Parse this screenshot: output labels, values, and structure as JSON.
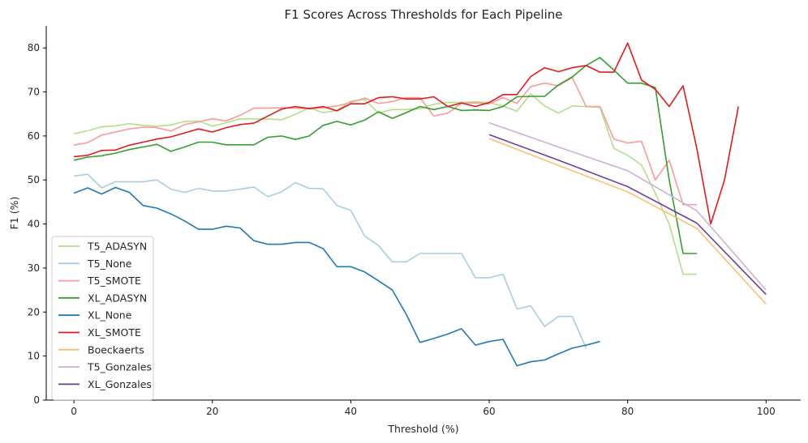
{
  "chart_data": {
    "type": "line",
    "title": "F1 Scores Across Thresholds for Each Pipeline",
    "xlabel": "Threshold (%)",
    "ylabel": "F1 (%)",
    "xlim": [
      -4,
      105
    ],
    "ylim": [
      0,
      85
    ],
    "xticks": [
      "0",
      "20",
      "40",
      "60",
      "80",
      "100"
    ],
    "yticks": [
      "0",
      "10",
      "20",
      "30",
      "40",
      "50",
      "60",
      "70",
      "80"
    ],
    "grid": false,
    "legend_position": "lower-left",
    "series": [
      {
        "name": "T5_ADASYN",
        "color": "#b2df8a",
        "x": [
          0,
          2,
          4,
          6,
          8,
          10,
          12,
          14,
          16,
          18,
          20,
          22,
          24,
          26,
          28,
          30,
          32,
          34,
          36,
          38,
          40,
          42,
          44,
          46,
          48,
          50,
          52,
          54,
          56,
          58,
          60,
          62,
          64,
          66,
          68,
          70,
          72,
          74,
          76,
          78,
          80,
          82,
          84,
          86,
          88,
          90
        ],
        "y": [
          60.5,
          61.2,
          62.1,
          62.3,
          62.8,
          62.4,
          62.2,
          62.5,
          63.3,
          63.4,
          62.2,
          63.0,
          63.9,
          63.9,
          63.8,
          63.7,
          64.9,
          66.4,
          65.3,
          65.8,
          67.9,
          68.3,
          65.2,
          66.0,
          66.0,
          66.2,
          67.2,
          67.6,
          67.6,
          67.8,
          67.6,
          66.8,
          65.6,
          69.6,
          66.8,
          65.2,
          66.8,
          66.7,
          66.5,
          57.2,
          55.6,
          53.4,
          47.0,
          40.0,
          28.6,
          28.6
        ]
      },
      {
        "name": "T5_None",
        "color": "#a6cee3",
        "x": [
          0,
          2,
          4,
          6,
          8,
          10,
          12,
          14,
          16,
          18,
          20,
          22,
          24,
          26,
          28,
          30,
          32,
          34,
          36,
          38,
          40,
          42,
          44,
          46,
          48,
          50,
          52,
          54,
          56,
          58,
          60,
          62,
          64,
          66,
          68,
          70,
          72,
          74
        ],
        "y": [
          50.9,
          51.3,
          48.2,
          49.6,
          49.6,
          49.6,
          50.0,
          47.9,
          47.2,
          48.1,
          47.5,
          47.5,
          47.9,
          48.4,
          46.2,
          47.3,
          49.4,
          48.1,
          48.0,
          44.2,
          43.1,
          37.3,
          35.1,
          31.4,
          31.4,
          33.3,
          33.3,
          33.3,
          33.3,
          27.8,
          27.8,
          28.6,
          20.7,
          21.4,
          16.7,
          19.0,
          19.0,
          11.8
        ]
      },
      {
        "name": "T5_SMOTE",
        "color": "#fb9a99",
        "x": [
          0,
          2,
          4,
          6,
          8,
          10,
          12,
          14,
          16,
          18,
          20,
          22,
          24,
          26,
          28,
          30,
          32,
          34,
          36,
          38,
          40,
          42,
          44,
          46,
          48,
          50,
          52,
          54,
          56,
          58,
          60,
          62,
          64,
          66,
          68,
          70,
          72,
          74,
          76,
          78,
          80,
          82,
          84,
          86,
          88,
          90
        ],
        "y": [
          57.9,
          58.5,
          60.2,
          60.9,
          61.6,
          62.0,
          61.9,
          61.1,
          62.6,
          63.2,
          63.9,
          63.4,
          64.7,
          66.3,
          66.3,
          66.4,
          66.3,
          66.2,
          66.4,
          66.8,
          67.6,
          68.6,
          67.4,
          67.8,
          68.7,
          68.7,
          64.5,
          65.2,
          67.4,
          67.5,
          67.3,
          68.7,
          67.4,
          71.2,
          72.0,
          71.4,
          73.3,
          66.7,
          66.7,
          59.3,
          58.4,
          58.8,
          50.0,
          54.5,
          44.4,
          44.4
        ]
      },
      {
        "name": "XL_ADASYN",
        "color": "#33a02c",
        "x": [
          0,
          2,
          4,
          6,
          8,
          10,
          12,
          14,
          16,
          18,
          20,
          22,
          24,
          26,
          28,
          30,
          32,
          34,
          36,
          38,
          40,
          42,
          44,
          46,
          48,
          50,
          52,
          54,
          56,
          58,
          60,
          62,
          64,
          66,
          68,
          70,
          72,
          74,
          76,
          78,
          80,
          82,
          84,
          86,
          88,
          90
        ],
        "y": [
          54.5,
          55.2,
          55.5,
          56.1,
          56.9,
          57.5,
          58.1,
          56.5,
          57.5,
          58.6,
          58.6,
          58.0,
          58.0,
          58.0,
          59.7,
          60.0,
          59.2,
          60.0,
          62.4,
          63.3,
          62.5,
          63.6,
          65.5,
          64.0,
          65.3,
          66.7,
          66.0,
          66.7,
          65.8,
          65.9,
          65.8,
          66.7,
          68.9,
          69.0,
          69.0,
          71.6,
          73.4,
          76.0,
          77.8,
          75.0,
          72.0,
          72.0,
          71.0,
          50.0,
          33.3,
          33.3
        ]
      },
      {
        "name": "XL_None",
        "color": "#1f78b4",
        "x": [
          0,
          2,
          4,
          6,
          8,
          10,
          12,
          14,
          16,
          18,
          20,
          22,
          24,
          26,
          28,
          30,
          32,
          34,
          36,
          38,
          40,
          42,
          44,
          46,
          48,
          50,
          52,
          54,
          56,
          58,
          60,
          62,
          64,
          66,
          68,
          70,
          72,
          74,
          76
        ],
        "y": [
          47.0,
          48.2,
          46.8,
          48.3,
          47.2,
          44.2,
          43.6,
          42.3,
          40.7,
          38.8,
          38.8,
          39.5,
          39.1,
          36.2,
          35.4,
          35.4,
          35.8,
          35.8,
          34.4,
          30.3,
          30.3,
          29.1,
          27.1,
          25.0,
          19.5,
          13.1,
          14.0,
          15.0,
          16.2,
          12.5,
          13.3,
          13.8,
          7.8,
          8.7,
          9.1,
          10.5,
          11.8,
          12.5,
          13.3
        ]
      },
      {
        "name": "XL_SMOTE",
        "color": "#e31a1c",
        "x": [
          0,
          2,
          4,
          6,
          8,
          10,
          12,
          14,
          16,
          18,
          20,
          22,
          24,
          26,
          28,
          30,
          32,
          34,
          36,
          38,
          40,
          42,
          44,
          46,
          48,
          50,
          52,
          54,
          56,
          58,
          60,
          62,
          64,
          66,
          68,
          70,
          72,
          74,
          76,
          78,
          80,
          82,
          84,
          86,
          88,
          90,
          92,
          94,
          96
        ],
        "y": [
          55.3,
          55.6,
          56.7,
          56.8,
          57.9,
          58.6,
          59.3,
          59.8,
          60.7,
          61.6,
          60.9,
          61.9,
          62.6,
          62.9,
          64.5,
          66.1,
          66.7,
          66.2,
          66.7,
          65.7,
          67.3,
          67.3,
          68.7,
          68.9,
          68.4,
          68.4,
          68.9,
          66.7,
          67.5,
          66.7,
          67.6,
          69.4,
          69.4,
          73.5,
          75.5,
          74.6,
          75.5,
          76.0,
          74.5,
          74.5,
          81.1,
          72.7,
          70.6,
          66.7,
          71.4,
          57.1,
          40.0,
          50.0,
          66.7
        ]
      },
      {
        "name": "Boeckaerts",
        "color": "#fdbf6f",
        "x": [
          60,
          70,
          80,
          90,
          100
        ],
        "y": [
          59.4,
          53.3,
          47.3,
          39.0,
          21.8
        ]
      },
      {
        "name": "T5_Gonzales",
        "color": "#cab2d6",
        "x": [
          60,
          70,
          80,
          90,
          100
        ],
        "y": [
          63.0,
          57.5,
          52.1,
          43.0,
          25.0
        ]
      },
      {
        "name": "XL_Gonzales",
        "color": "#6a3d9a",
        "x": [
          60,
          70,
          80,
          90,
          100
        ],
        "y": [
          60.3,
          54.5,
          48.5,
          40.2,
          24.0
        ]
      }
    ]
  }
}
